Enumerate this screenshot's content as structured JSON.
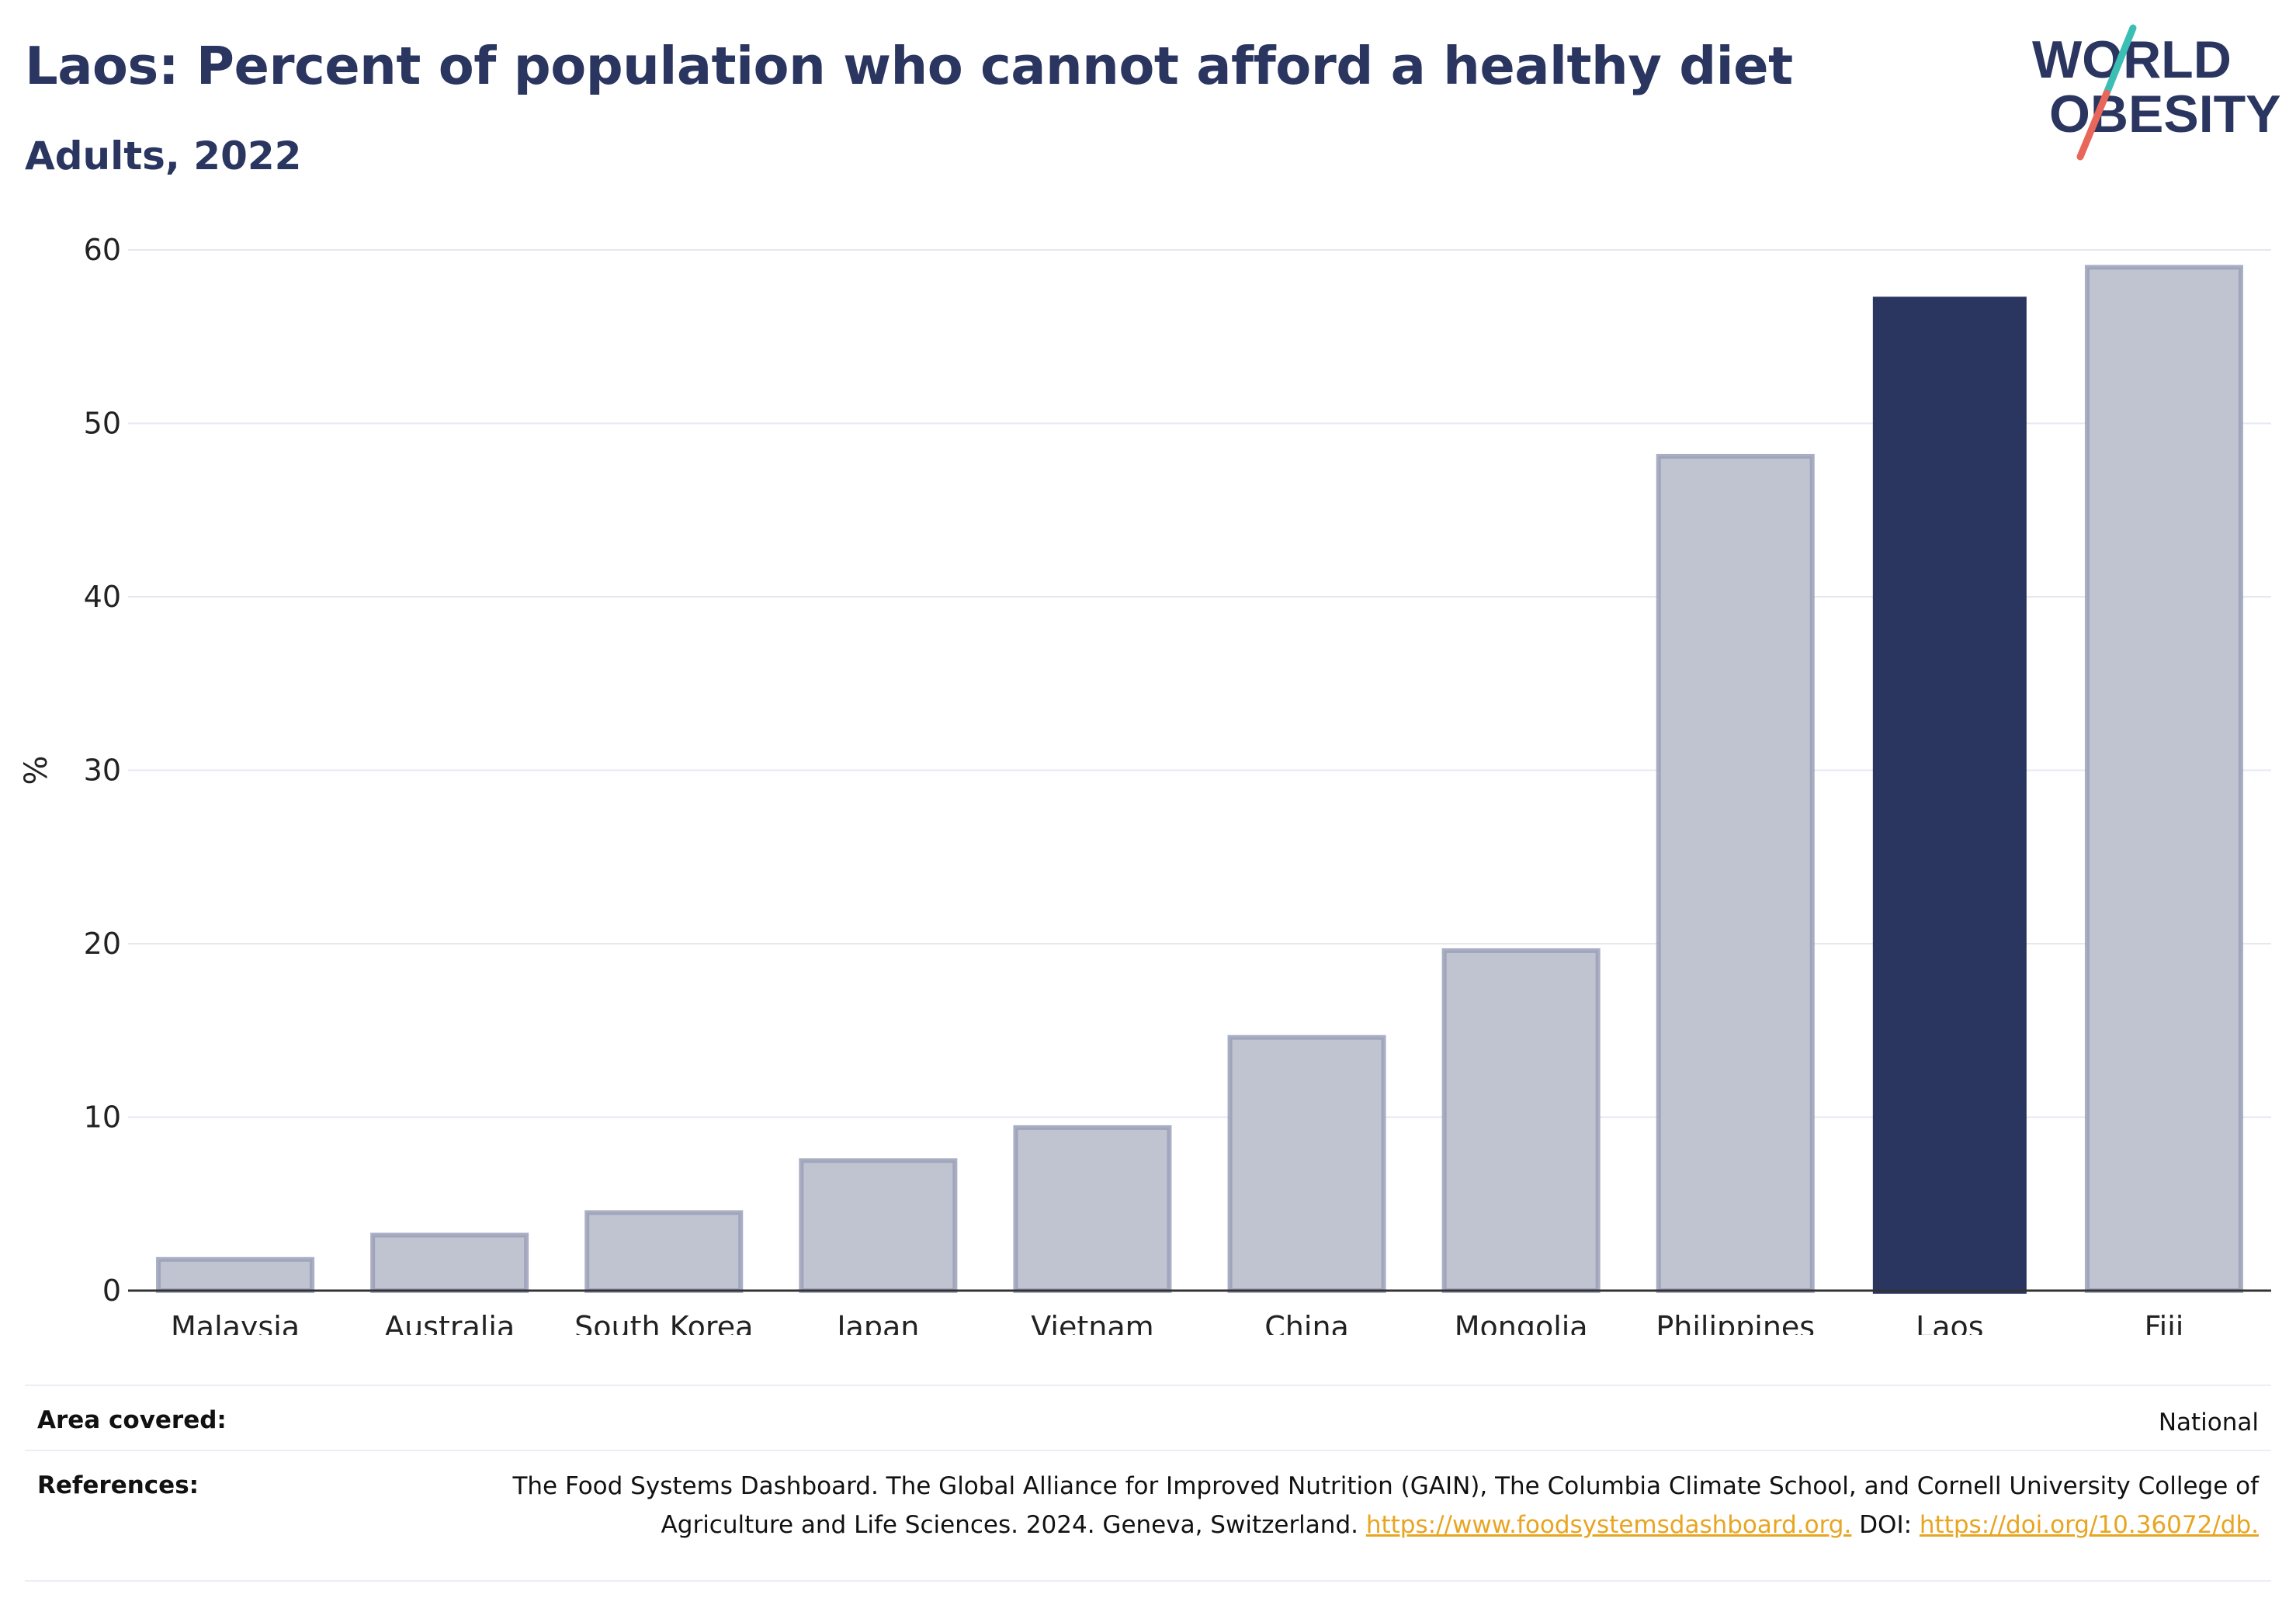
{
  "header": {
    "title": "Laos: Percent of population who cannot afford a healthy diet",
    "subtitle": "Adults, 2022"
  },
  "logo": {
    "line1": "WORLD",
    "line2": "OBESITY",
    "accent_colors": [
      "#3bbfb4",
      "#e8675a"
    ]
  },
  "chart_data": {
    "type": "bar",
    "categories": [
      "Malaysia",
      "Australia",
      "South Korea",
      "Japan",
      "Vietnam",
      "China",
      "Mongolia",
      "Philippines",
      "Laos",
      "Fiji"
    ],
    "values": [
      1.8,
      3.2,
      4.5,
      7.5,
      9.4,
      14.6,
      19.6,
      48.1,
      57.3,
      59.0
    ],
    "highlight": "Laos",
    "xlabel": "",
    "ylabel": "%",
    "ylim": [
      0,
      60
    ],
    "yticks": [
      0,
      10,
      20,
      30,
      40,
      50,
      60
    ],
    "grid": true,
    "colors": {
      "bar": "#c0c3d0",
      "bar_edge": "#9aa0b8",
      "highlight": "#2a3560",
      "grid": "#e6e8f0",
      "axis": "#333333"
    }
  },
  "footer": {
    "area_label": "Area covered:",
    "area_value": "National",
    "references_label": "References:",
    "references_text": "The Food Systems Dashboard. The Global Alliance for Improved Nutrition (GAIN), The Columbia Climate School, and Cornell University College of Agriculture and Life Sciences. 2024. Geneva, Switzerland.",
    "references_link1": "https://www.foodsystemsdashboard.org.",
    "references_doi_label": "DOI:",
    "references_link2": "https://doi.org/10.36072/db."
  }
}
